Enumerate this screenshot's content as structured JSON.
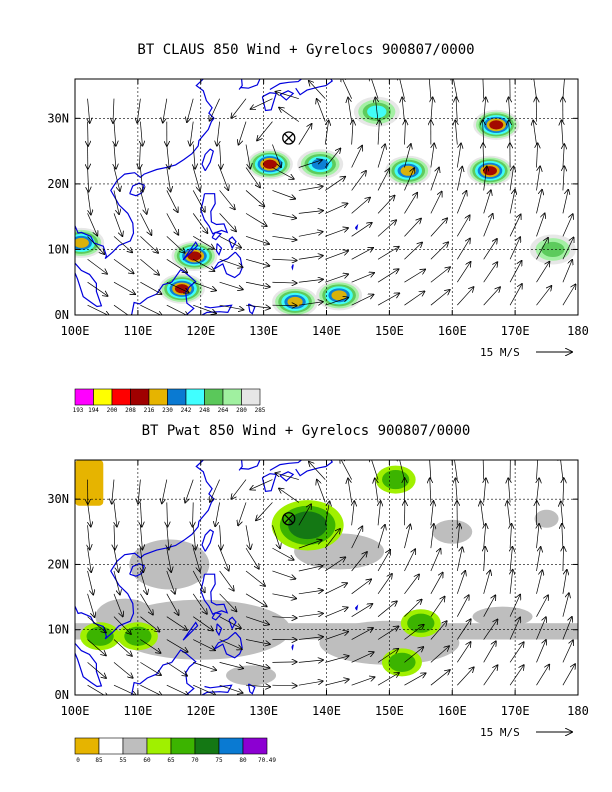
{
  "chart_data": [
    {
      "type": "heatmap",
      "title": "BT CLAUS 850 Wind + Gyrelocs 900807/0000",
      "x_ticks": [
        "100E",
        "110E",
        "120E",
        "130E",
        "140E",
        "150E",
        "160E",
        "170E",
        "180"
      ],
      "y_ticks": [
        "0N",
        "10N",
        "20N",
        "30N"
      ],
      "xlim": [
        100,
        180
      ],
      "ylim": [
        0,
        36
      ],
      "grid": true,
      "overlay": "850 hPa wind vectors",
      "reference_vector": "15 M/S",
      "storm_location": {
        "lon": 134,
        "lat": 27
      },
      "legend": {
        "placement": "bottom-left",
        "labels": [
          "193",
          "194",
          "200",
          "208",
          "216",
          "230",
          "242",
          "248",
          "264",
          "280",
          "285"
        ],
        "colors": [
          "#ff00ff",
          "#ffff00",
          "#ff0000",
          "#a00000",
          "#e6b400",
          "#0a7ad2",
          "#40ffff",
          "#5ac85a",
          "#a0f0a0",
          "#e6e6e6"
        ]
      },
      "features": [
        {
          "lon": 131,
          "lat": 23,
          "category": "208"
        },
        {
          "lon": 139,
          "lat": 23,
          "category": "230"
        },
        {
          "lon": 153,
          "lat": 22,
          "category": "216"
        },
        {
          "lon": 166,
          "lat": 22,
          "category": "208"
        },
        {
          "lon": 167,
          "lat": 29,
          "category": "208"
        },
        {
          "lon": 148,
          "lat": 31,
          "category": "242"
        },
        {
          "lon": 119,
          "lat": 9,
          "category": "208"
        },
        {
          "lon": 117,
          "lat": 4,
          "category": "208"
        },
        {
          "lon": 101,
          "lat": 11,
          "category": "216"
        },
        {
          "lon": 142,
          "lat": 3,
          "category": "216"
        },
        {
          "lon": 135,
          "lat": 2,
          "category": "216"
        },
        {
          "lon": 176,
          "lat": 10,
          "category": "248"
        }
      ]
    },
    {
      "type": "heatmap",
      "title": "BT Pwat 850 Wind + Gyrelocs 900807/0000",
      "x_ticks": [
        "100E",
        "110E",
        "120E",
        "130E",
        "140E",
        "150E",
        "160E",
        "170E",
        "180"
      ],
      "y_ticks": [
        "0N",
        "10N",
        "20N",
        "30N"
      ],
      "xlim": [
        100,
        180
      ],
      "ylim": [
        0,
        36
      ],
      "grid": true,
      "overlay": "850 hPa wind vectors",
      "reference_vector": "15 M/S",
      "storm_location": {
        "lon": 134,
        "lat": 27
      },
      "legend": {
        "placement": "bottom-left",
        "labels": [
          "0",
          "85",
          "55",
          "60",
          "65",
          "70",
          "75",
          "80",
          "70.49"
        ],
        "colors": [
          "#e6b400",
          "#ffffff",
          "#bebebe",
          "#a0f000",
          "#3cb400",
          "#147814",
          "#0a7ad2",
          "#8c00d2"
        ]
      },
      "features": [
        {
          "lon": 101,
          "lat": 32,
          "category": "0"
        },
        {
          "lon": 137,
          "lat": 26,
          "category": "70"
        },
        {
          "lon": 151,
          "lat": 33,
          "category": "65"
        },
        {
          "lon": 155,
          "lat": 11,
          "category": "65"
        },
        {
          "lon": 152,
          "lat": 5,
          "category": "65"
        },
        {
          "lon": 104,
          "lat": 9,
          "category": "65"
        },
        {
          "lon": 110,
          "lat": 9,
          "category": "65"
        }
      ]
    }
  ]
}
